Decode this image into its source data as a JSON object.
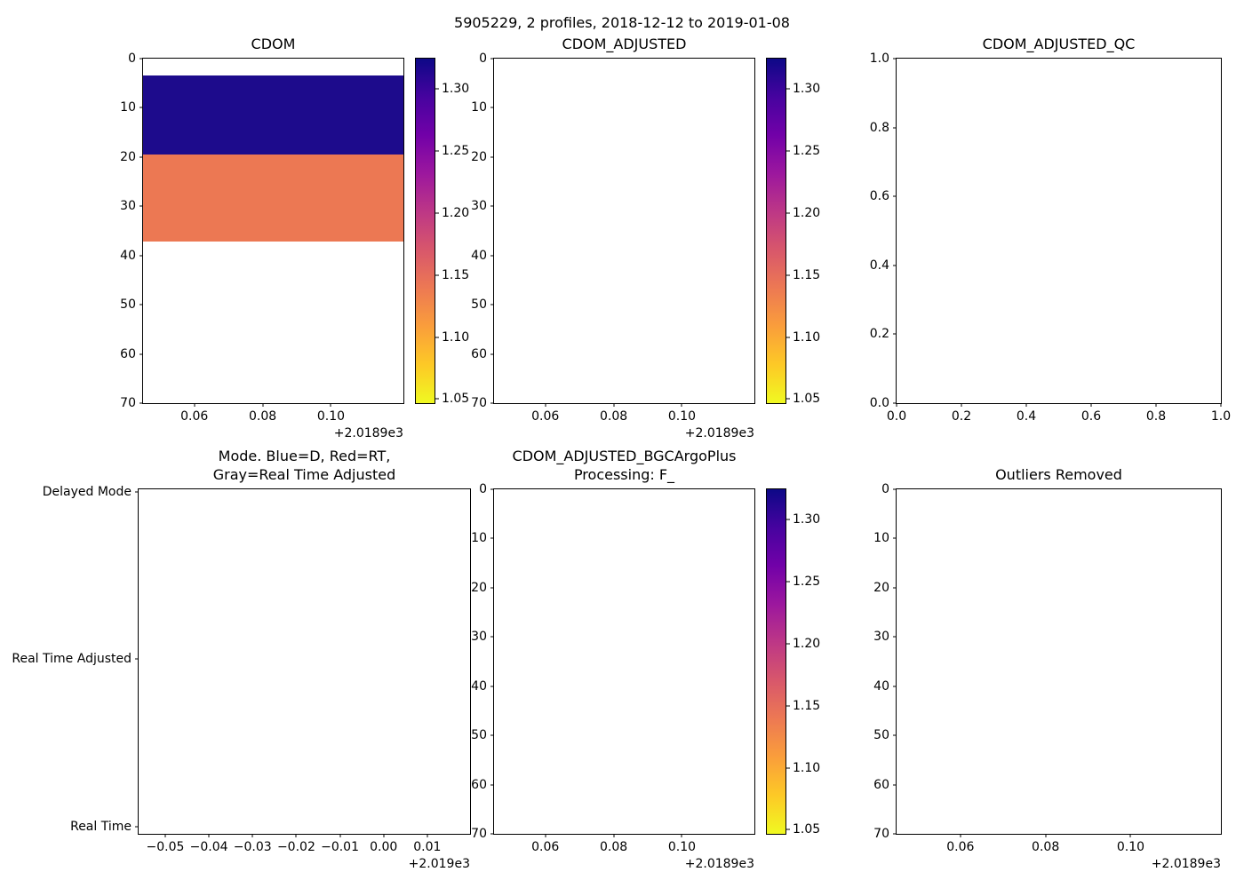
{
  "figure": {
    "title": "5905229, 2 profiles, 2018-12-12 to 2019-01-08"
  },
  "chart_data": {
    "type": "heatmap",
    "title": "5905229, 2 profiles, 2018-12-12 to 2019-01-08",
    "colormap": {
      "name": "plasma_r",
      "stops_top_to_bottom": [
        "#0d0887",
        "#46039f",
        "#7201a8",
        "#9c179e",
        "#bd3786",
        "#d8576b",
        "#ed7953",
        "#fa9e3b",
        "#fdc926",
        "#f0f921"
      ]
    },
    "panels": [
      {
        "id": "cdom",
        "title_lines": [
          "CDOM"
        ],
        "x_axis": {
          "range": [
            0.045,
            0.1212
          ],
          "tick_values": [
            0.06,
            0.08,
            0.1
          ],
          "tick_labels": [
            "0.06",
            "0.08",
            "0.10"
          ],
          "offset_label": "+2.0189e3"
        },
        "y_axis": {
          "range": [
            0,
            70
          ],
          "inverted": true,
          "tick_values": [
            0,
            10,
            20,
            30,
            40,
            50,
            60,
            70
          ],
          "tick_labels": [
            "0",
            "10",
            "20",
            "30",
            "40",
            "50",
            "60",
            "70"
          ]
        },
        "bands": [
          {
            "from": 3.4,
            "to": 19.4,
            "value": 1.31,
            "color": "#1d0b8c"
          },
          {
            "from": 19.4,
            "to": 37.2,
            "value": 1.15,
            "color": "#ec7853"
          }
        ],
        "colorbar": {
          "vmin": 1.046,
          "vmax": 1.325,
          "tick_values": [
            1.3,
            1.25,
            1.2,
            1.15,
            1.1,
            1.05
          ],
          "tick_labels": [
            "1.30",
            "1.25",
            "1.20",
            "1.15",
            "1.10",
            "1.05"
          ]
        }
      },
      {
        "id": "cdom-adjusted",
        "title_lines": [
          "CDOM_ADJUSTED"
        ],
        "x_axis": {
          "range": [
            0.045,
            0.1212
          ],
          "tick_values": [
            0.06,
            0.08,
            0.1
          ],
          "tick_labels": [
            "0.06",
            "0.08",
            "0.10"
          ],
          "offset_label": "+2.0189e3"
        },
        "y_axis": {
          "range": [
            0,
            70
          ],
          "inverted": true,
          "tick_values": [
            0,
            10,
            20,
            30,
            40,
            50,
            60,
            70
          ],
          "tick_labels": [
            "0",
            "10",
            "20",
            "30",
            "40",
            "50",
            "60",
            "70"
          ]
        },
        "bands": [],
        "colorbar": {
          "vmin": 1.046,
          "vmax": 1.325,
          "tick_values": [
            1.3,
            1.25,
            1.2,
            1.15,
            1.1,
            1.05
          ],
          "tick_labels": [
            "1.30",
            "1.25",
            "1.20",
            "1.15",
            "1.10",
            "1.05"
          ]
        }
      },
      {
        "id": "cdom-adjusted-qc",
        "title_lines": [
          "CDOM_ADJUSTED_QC"
        ],
        "x_axis": {
          "range": [
            0,
            1
          ],
          "tick_values": [
            0,
            0.2,
            0.4,
            0.6,
            0.8,
            1
          ],
          "tick_labels": [
            "0.0",
            "0.2",
            "0.4",
            "0.6",
            "0.8",
            "1.0"
          ]
        },
        "y_axis": {
          "range": [
            0,
            1
          ],
          "inverted": false,
          "tick_values": [
            1,
            0.8,
            0.6,
            0.4,
            0.2,
            0
          ],
          "tick_labels": [
            "1.0",
            "0.8",
            "0.6",
            "0.4",
            "0.2",
            "0.0"
          ]
        },
        "bands": [],
        "colorbar": null
      },
      {
        "id": "mode",
        "title_lines": [
          "Mode. Blue=D, Red=RT,",
          "Gray=Real Time Adjusted"
        ],
        "x_axis": {
          "range": [
            -0.0561,
            0.0198
          ],
          "tick_values": [
            -0.05,
            -0.04,
            -0.03,
            -0.02,
            -0.01,
            0,
            0.01
          ],
          "tick_labels": [
            "−0.05",
            "−0.04",
            "−0.03",
            "−0.02",
            "−0.01",
            "0.00",
            "0.01"
          ],
          "offset_label": "+2.019e3"
        },
        "y_axis": {
          "range": [
            -0.044,
            2.016
          ],
          "inverted": false,
          "tick_values": [
            2,
            1,
            0
          ],
          "tick_labels": [
            "Delayed Mode",
            "Real Time Adjusted",
            "Real Time"
          ]
        },
        "bands": [],
        "colorbar": null
      },
      {
        "id": "cdom-adjusted-bgcargoplus",
        "title_lines": [
          "CDOM_ADJUSTED_BGCArgoPlus",
          "Processing: F_"
        ],
        "x_axis": {
          "range": [
            0.045,
            0.1212
          ],
          "tick_values": [
            0.06,
            0.08,
            0.1
          ],
          "tick_labels": [
            "0.06",
            "0.08",
            "0.10"
          ],
          "offset_label": "+2.0189e3"
        },
        "y_axis": {
          "range": [
            0,
            70
          ],
          "inverted": true,
          "tick_values": [
            0,
            10,
            20,
            30,
            40,
            50,
            60,
            70
          ],
          "tick_labels": [
            "0",
            "10",
            "20",
            "30",
            "40",
            "50",
            "60",
            "70"
          ]
        },
        "bands": [],
        "colorbar": {
          "vmin": 1.046,
          "vmax": 1.325,
          "tick_values": [
            1.3,
            1.25,
            1.2,
            1.15,
            1.1,
            1.05
          ],
          "tick_labels": [
            "1.30",
            "1.25",
            "1.20",
            "1.15",
            "1.10",
            "1.05"
          ]
        }
      },
      {
        "id": "outliers-removed",
        "title_lines": [
          "Outliers Removed"
        ],
        "x_axis": {
          "range": [
            0.045,
            0.1212
          ],
          "tick_values": [
            0.06,
            0.08,
            0.1
          ],
          "tick_labels": [
            "0.06",
            "0.08",
            "0.10"
          ],
          "offset_label": "+2.0189e3"
        },
        "y_axis": {
          "range": [
            0,
            70
          ],
          "inverted": true,
          "tick_values": [
            0,
            10,
            20,
            30,
            40,
            50,
            60,
            70
          ],
          "tick_labels": [
            "0",
            "10",
            "20",
            "30",
            "40",
            "50",
            "60",
            "70"
          ]
        },
        "bands": [],
        "colorbar": null
      }
    ]
  }
}
